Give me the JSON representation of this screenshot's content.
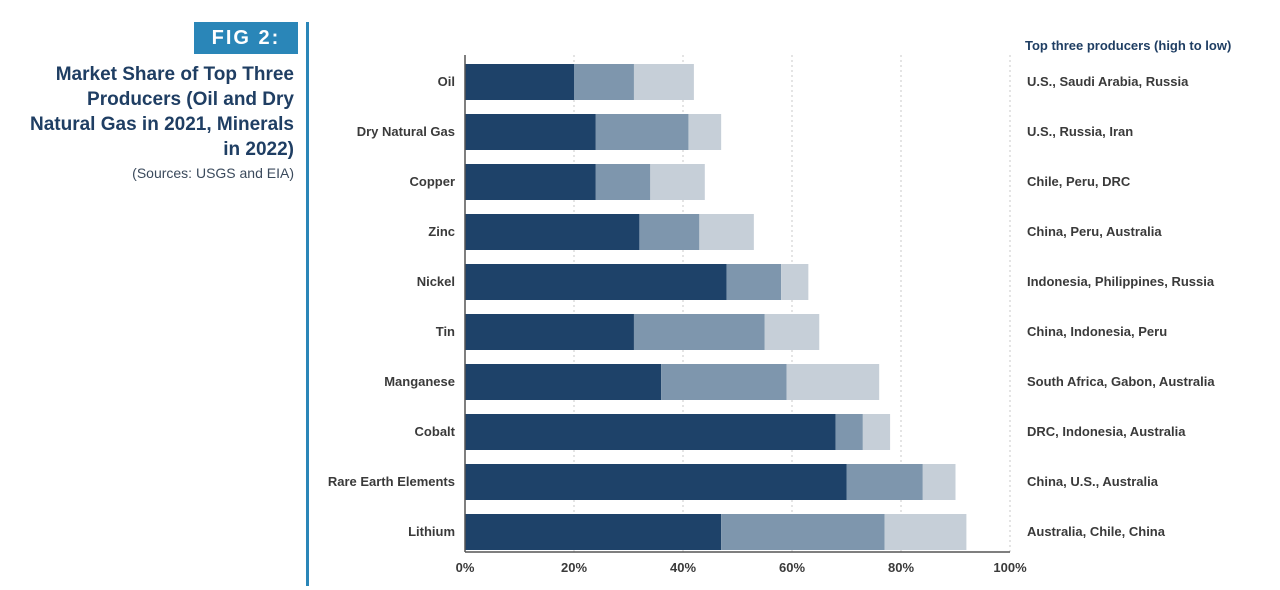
{
  "figure": {
    "badge": "FIG 2:",
    "title": "Market Share of Top Three Producers (Oil and Dry Natural Gas in 2021, Minerals in 2022)",
    "source": "(Sources: USGS and EIA)"
  },
  "chart_data": {
    "type": "bar",
    "orientation": "horizontal",
    "stacked": true,
    "categories": [
      "Oil",
      "Dry Natural Gas",
      "Copper",
      "Zinc",
      "Nickel",
      "Tin",
      "Manganese",
      "Cobalt",
      "Rare Earth Elements",
      "Lithium"
    ],
    "series": [
      {
        "color": "#1e4269",
        "values": [
          20,
          24,
          24,
          32,
          48,
          31,
          36,
          68,
          70,
          47
        ]
      },
      {
        "color": "#7e96ad",
        "values": [
          11,
          17,
          10,
          11,
          10,
          24,
          23,
          5,
          14,
          30
        ]
      },
      {
        "color": "#c6cfd8",
        "values": [
          11,
          6,
          10,
          10,
          5,
          10,
          17,
          5,
          6,
          15
        ]
      }
    ],
    "xlim": [
      0,
      100
    ],
    "xticks": [
      "0%",
      "20%",
      "40%",
      "60%",
      "80%",
      "100%"
    ],
    "xtick_values": [
      0,
      20,
      40,
      60,
      80,
      100
    ],
    "grid": "vertical dotted",
    "producers_header": "Top three producers (high to low)",
    "producers": [
      "U.S., Saudi Arabia, Russia",
      "U.S., Russia, Iran",
      "Chile, Peru, DRC",
      "China, Peru, Australia",
      "Indonesia, Philippines, Russia",
      "China, Indonesia, Peru",
      "South Africa, Gabon, Australia",
      "DRC, Indonesia, Australia",
      "China, U.S., Australia",
      "Australia, Chile, China"
    ]
  }
}
